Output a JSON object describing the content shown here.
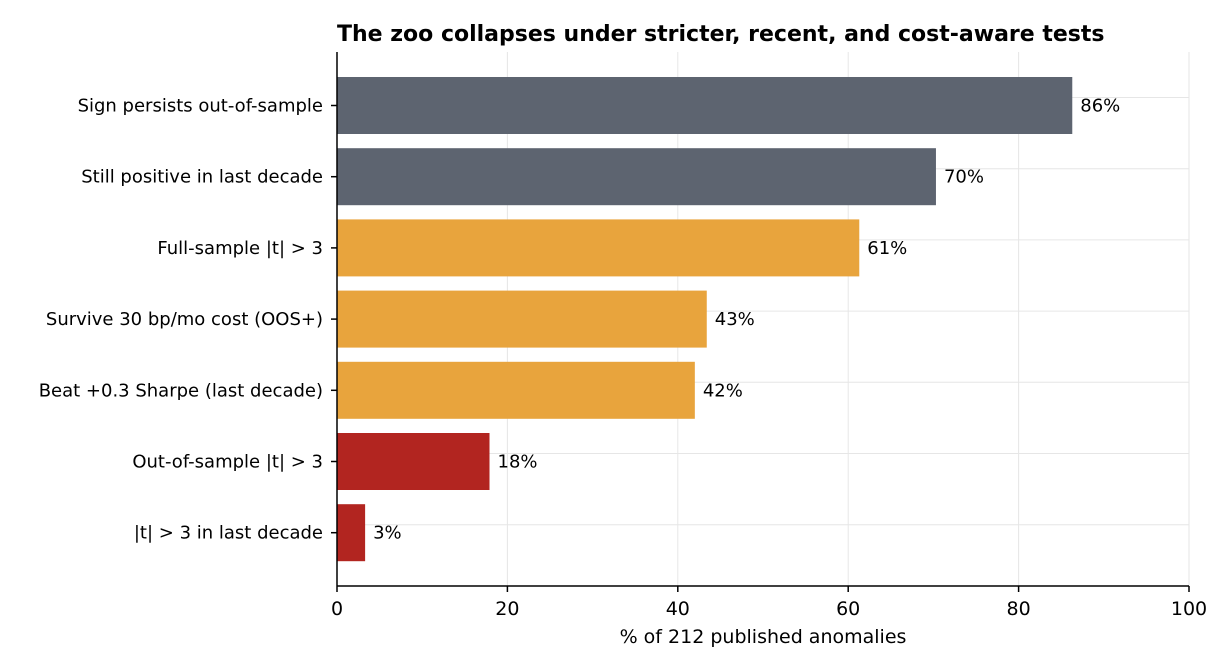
{
  "chart_data": {
    "type": "bar",
    "orientation": "horizontal",
    "title": "The zoo collapses under stricter, recent, and cost-aware tests",
    "xlabel": "% of 212 published anomalies",
    "ylabel": "",
    "xlim": [
      0,
      100
    ],
    "xticks": [
      0,
      20,
      40,
      60,
      80,
      100
    ],
    "grid": true,
    "categories": [
      "Sign persists out-of-sample",
      "Still positive in last decade",
      "Full-sample |t| > 3",
      "Survive 30 bp/mo cost (OOS+)",
      "Beat +0.3 Sharpe (last decade)",
      "Out-of-sample |t| > 3",
      "|t| > 3 in last decade"
    ],
    "values": [
      86.3,
      70.3,
      61.3,
      43.4,
      42.0,
      17.9,
      3.3
    ],
    "value_labels": [
      "86%",
      "70%",
      "61%",
      "43%",
      "42%",
      "18%",
      "3%"
    ],
    "colors": [
      "#5d6470",
      "#5d6470",
      "#e8a43d",
      "#e8a43d",
      "#e8a43d",
      "#b22520",
      "#b22520"
    ]
  }
}
